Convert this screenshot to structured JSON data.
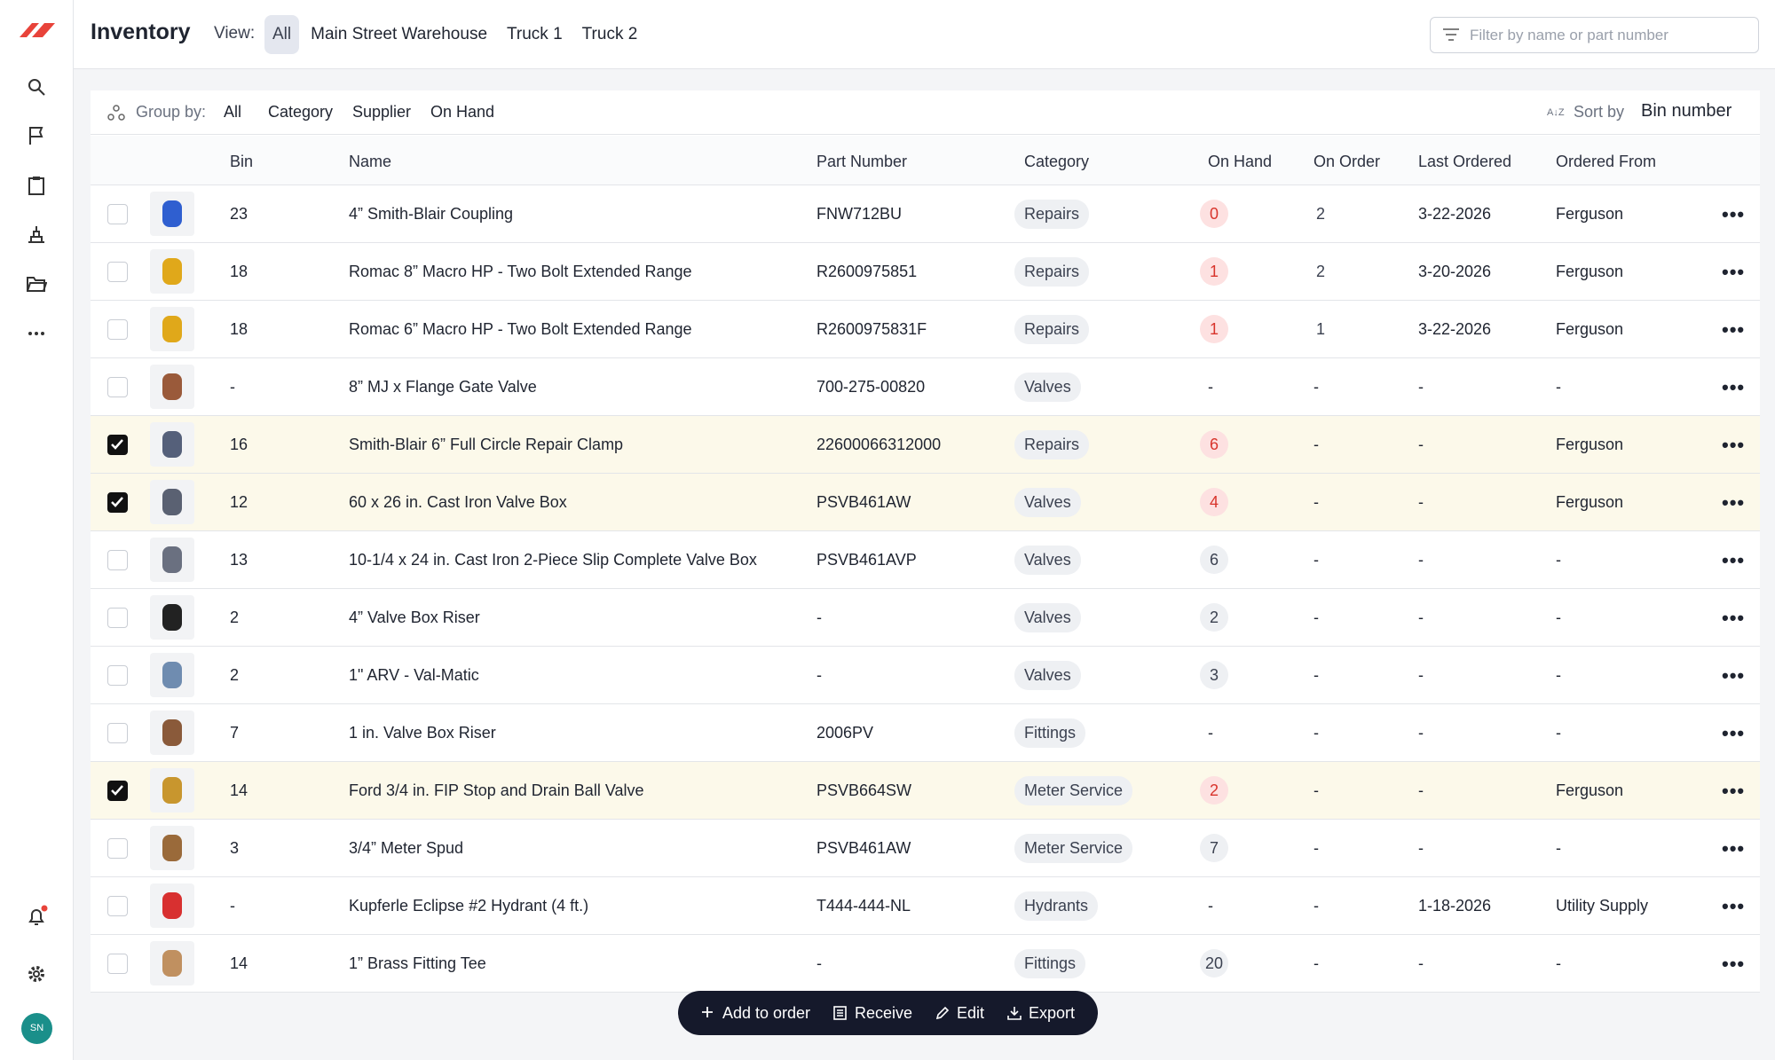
{
  "header": {
    "title": "Inventory",
    "view_label": "View:",
    "views": [
      "All",
      "Main Street Warehouse",
      "Truck 1",
      "Truck 2"
    ],
    "filter_placeholder": "Filter by name or part number"
  },
  "toolbar": {
    "group_label": "Group by:",
    "group_options": [
      "All",
      "Category",
      "Supplier",
      "On Hand"
    ],
    "sort_label": "Sort by",
    "sort_value": "Bin number"
  },
  "table": {
    "columns": [
      "Bin",
      "Name",
      "Part Number",
      "Category",
      "On Hand",
      "On Order",
      "Last Ordered",
      "Ordered From"
    ],
    "rows": [
      {
        "bin": "23",
        "name": "4” Smith-Blair Coupling",
        "part": "FNW712BU",
        "category": "Repairs",
        "on_hand": "0",
        "on_hand_color": "red",
        "on_order": "2",
        "last_ordered": "3-22-2026",
        "ordered_from": "Ferguson",
        "selected": false
      },
      {
        "bin": "18",
        "name": "Romac 8” Macro HP - Two Bolt Extended Range",
        "part": "R2600975851",
        "category": "Repairs",
        "on_hand": "1",
        "on_hand_color": "red",
        "on_order": "2",
        "last_ordered": "3-20-2026",
        "ordered_from": "Ferguson",
        "selected": false
      },
      {
        "bin": "18",
        "name": "Romac 6” Macro HP - Two Bolt Extended Range",
        "part": "R2600975831F",
        "category": "Repairs",
        "on_hand": "1",
        "on_hand_color": "red",
        "on_order": "1",
        "last_ordered": "3-22-2026",
        "ordered_from": "Ferguson",
        "selected": false
      },
      {
        "bin": "-",
        "name": "8” MJ x Flange Gate Valve",
        "part": "700-275-00820",
        "category": "Valves",
        "on_hand": "-",
        "on_hand_color": "gray",
        "on_order": "-",
        "last_ordered": "-",
        "ordered_from": "-",
        "selected": false
      },
      {
        "bin": "16",
        "name": "Smith-Blair 6” Full Circle Repair Clamp",
        "part": "22600066312000",
        "category": "Repairs",
        "on_hand": "6",
        "on_hand_color": "red",
        "on_order": "-",
        "last_ordered": "-",
        "ordered_from": "Ferguson",
        "selected": true
      },
      {
        "bin": "12",
        "name": "60 x 26 in. Cast Iron Valve Box",
        "part": "PSVB461AW",
        "category": "Valves",
        "on_hand": "4",
        "on_hand_color": "red",
        "on_order": "-",
        "last_ordered": "-",
        "ordered_from": "Ferguson",
        "selected": true
      },
      {
        "bin": "13",
        "name": "10-1/4 x 24 in. Cast Iron 2-Piece Slip Complete Valve Box",
        "part": "PSVB461AVP",
        "category": "Valves",
        "on_hand": "6",
        "on_hand_color": "gray",
        "on_order": "-",
        "last_ordered": "-",
        "ordered_from": "-",
        "selected": false
      },
      {
        "bin": "2",
        "name": "4” Valve Box Riser",
        "part": "-",
        "category": "Valves",
        "on_hand": "2",
        "on_hand_color": "gray",
        "on_order": "-",
        "last_ordered": "-",
        "ordered_from": "-",
        "selected": false
      },
      {
        "bin": "2",
        "name": "1\" ARV - Val-Matic",
        "part": "-",
        "category": "Valves",
        "on_hand": "3",
        "on_hand_color": "gray",
        "on_order": "-",
        "last_ordered": "-",
        "ordered_from": "-",
        "selected": false
      },
      {
        "bin": "7",
        "name": "1 in. Valve Box Riser",
        "part": "2006PV",
        "category": "Fittings",
        "on_hand": "-",
        "on_hand_color": "gray",
        "on_order": "-",
        "last_ordered": "-",
        "ordered_from": "-",
        "selected": false
      },
      {
        "bin": "14",
        "name": "Ford 3/4 in. FIP Stop and Drain Ball Valve",
        "part": "PSVB664SW",
        "category": "Meter Service",
        "on_hand": "2",
        "on_hand_color": "red",
        "on_order": "-",
        "last_ordered": "-",
        "ordered_from": "Ferguson",
        "selected": true
      },
      {
        "bin": "3",
        "name": "3/4” Meter Spud",
        "part": "PSVB461AW",
        "category": "Meter Service",
        "on_hand": "7",
        "on_hand_color": "gray",
        "on_order": "-",
        "last_ordered": "-",
        "ordered_from": "-",
        "selected": false
      },
      {
        "bin": "-",
        "name": "Kupferle Eclipse #2 Hydrant (4 ft.)",
        "part": "T444-444-NL",
        "category": "Hydrants",
        "on_hand": "-",
        "on_hand_color": "gray",
        "on_order": "-",
        "last_ordered": "1-18-2026",
        "ordered_from": "Utility Supply",
        "selected": false
      },
      {
        "bin": "14",
        "name": "1” Brass Fitting Tee",
        "part": "-",
        "category": "Fittings",
        "on_hand": "20",
        "on_hand_color": "gray",
        "on_order": "-",
        "last_ordered": "-",
        "ordered_from": "-",
        "selected": false
      }
    ]
  },
  "actions": [
    "Add to order",
    "Receive",
    "Edit",
    "Export"
  ],
  "user": {
    "initials": "SN"
  }
}
